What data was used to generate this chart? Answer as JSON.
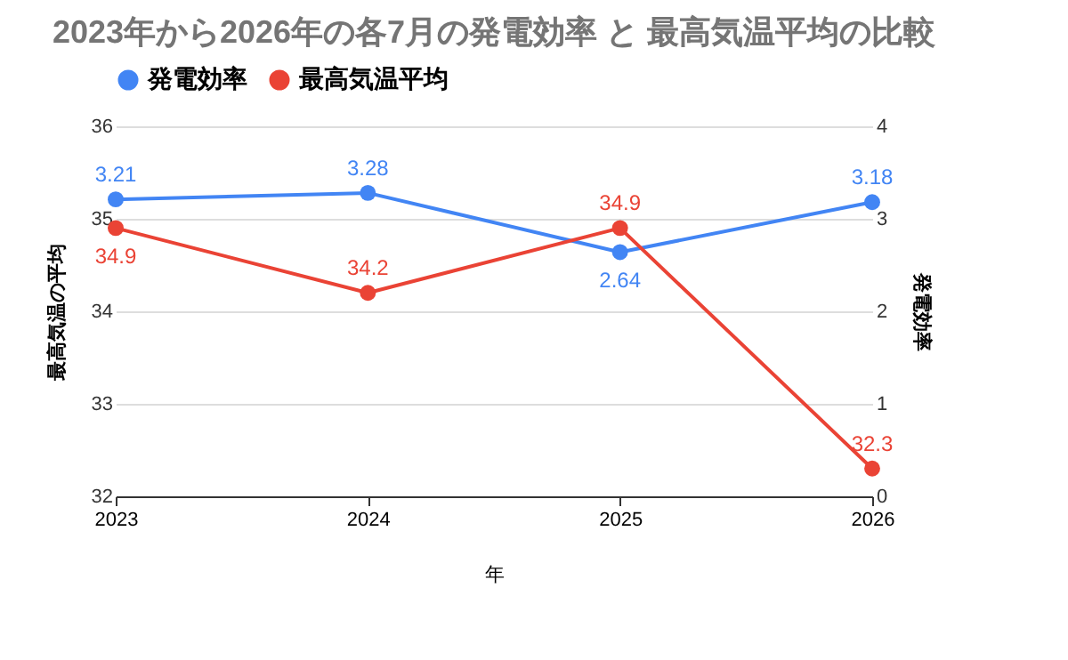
{
  "chart_data": {
    "type": "line",
    "title": "2023年から2026年の各7月の発電効率 と 最高気温平均の比較",
    "xlabel": "年",
    "ylabel": "最高気温の平均",
    "y2label": "発電効率",
    "categories": [
      "2023",
      "2024",
      "2025",
      "2026"
    ],
    "series": [
      {
        "name": "発電効率",
        "color": "#4285f4",
        "axis": "y2",
        "values": [
          3.21,
          3.28,
          2.64,
          3.18
        ]
      },
      {
        "name": "最高気温平均",
        "color": "#ea4335",
        "values": [
          34.9,
          34.2,
          34.9,
          32.3
        ]
      }
    ],
    "ylim": [
      32,
      36
    ],
    "yticks": [
      32,
      33,
      34,
      35,
      36
    ],
    "y2lim": [
      0,
      4
    ],
    "y2ticks": [
      0,
      1,
      2,
      3,
      4
    ],
    "data_labels": true,
    "grid": "y",
    "legend": "top",
    "marker": "circle",
    "line_style": "solid"
  }
}
